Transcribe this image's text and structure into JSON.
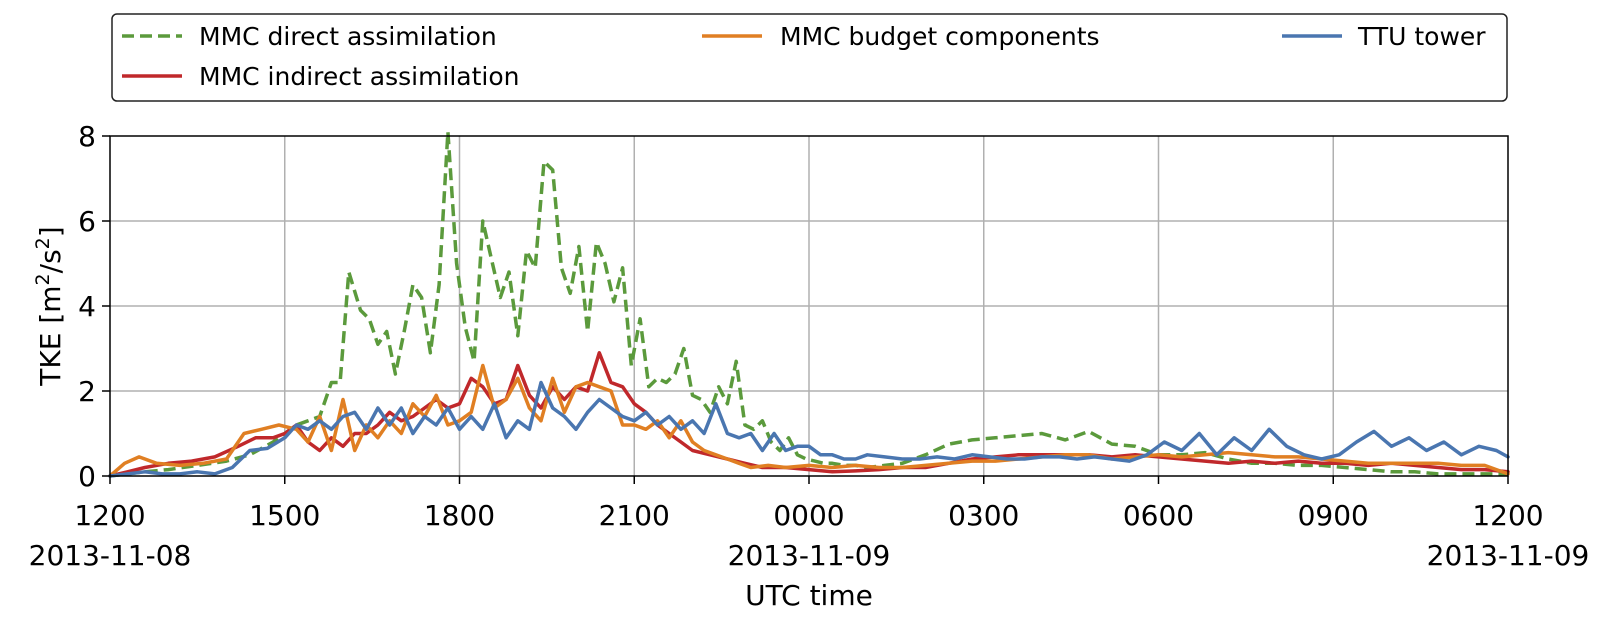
{
  "chart_data": {
    "type": "line",
    "xlabel": "UTC time",
    "ylabel_main": "TKE [m",
    "ylabel_sup1": "2",
    "ylabel_mid": "/s",
    "ylabel_sup2": "2",
    "ylabel_end": "]",
    "ylim": [
      0,
      8
    ],
    "y_ticks": [
      0,
      2,
      4,
      6,
      8
    ],
    "y_tick_labels": [
      "0",
      "2",
      "4",
      "6",
      "8"
    ],
    "x_unit": "hours since 2013-11-08 1200 UTC",
    "xlim": [
      0,
      24
    ],
    "x_ticks": [
      0,
      3,
      6,
      9,
      12,
      15,
      18,
      21,
      24
    ],
    "x_tick_labels": [
      "1200",
      "1500",
      "1800",
      "2100",
      "0000",
      "0300",
      "0600",
      "0900",
      "1200"
    ],
    "date_labels": [
      {
        "x": 0,
        "text": "2013-11-08"
      },
      {
        "x": 12,
        "text": "2013-11-09"
      },
      {
        "x": 24,
        "text": "2013-11-09"
      }
    ],
    "grid": true,
    "legend_placement": "above plot",
    "series": [
      {
        "name": "MMC direct assimilation",
        "color": "#5b9a3c",
        "dashed": true,
        "x": [
          0,
          0.3,
          0.6,
          1,
          1.5,
          2,
          2.4,
          2.8,
          3.2,
          3.4,
          3.6,
          3.8,
          3.95,
          4.1,
          4.3,
          4.45,
          4.6,
          4.75,
          4.9,
          5.05,
          5.2,
          5.35,
          5.5,
          5.65,
          5.8,
          5.95,
          6.1,
          6.25,
          6.4,
          6.55,
          6.7,
          6.85,
          7,
          7.15,
          7.3,
          7.45,
          7.6,
          7.75,
          7.9,
          8.05,
          8.2,
          8.35,
          8.5,
          8.65,
          8.8,
          8.95,
          9.1,
          9.25,
          9.4,
          9.55,
          9.7,
          9.85,
          10,
          10.15,
          10.3,
          10.45,
          10.6,
          10.75,
          10.9,
          11.05,
          11.2,
          11.35,
          11.5,
          11.65,
          11.8,
          11.95,
          12.1,
          12.25,
          12.4,
          12.6,
          12.8,
          13,
          13.3,
          13.6,
          14,
          14.4,
          14.8,
          15.2,
          15.6,
          16,
          16.4,
          16.8,
          17.2,
          17.6,
          18,
          18.4,
          18.8,
          19.2,
          19.6,
          20,
          20.4,
          20.8,
          21.2,
          21.6,
          22,
          22.4,
          22.8,
          23.2,
          23.6,
          24
        ],
        "y": [
          0,
          0.05,
          0.1,
          0.15,
          0.25,
          0.35,
          0.5,
          0.8,
          1.2,
          1.3,
          1.4,
          2.2,
          2.2,
          4.8,
          3.9,
          3.7,
          3.1,
          3.4,
          2.4,
          3.4,
          4.5,
          4.2,
          2.9,
          4.5,
          8.1,
          5,
          3.5,
          2.7,
          6,
          5.1,
          4.2,
          4.8,
          3.3,
          5.3,
          4.9,
          7.4,
          7.2,
          4.9,
          4.3,
          5.4,
          3.4,
          5.5,
          5,
          4.1,
          4.9,
          2.6,
          3.7,
          2.1,
          2.3,
          2.2,
          2.4,
          3,
          1.9,
          1.8,
          1.5,
          2.1,
          1.7,
          2.7,
          1.2,
          1.1,
          1.3,
          0.8,
          0.6,
          0.9,
          0.5,
          0.4,
          0.35,
          0.3,
          0.3,
          0.25,
          0.25,
          0.2,
          0.25,
          0.3,
          0.5,
          0.75,
          0.85,
          0.9,
          0.95,
          1,
          0.85,
          1.05,
          0.75,
          0.7,
          0.5,
          0.5,
          0.55,
          0.4,
          0.3,
          0.3,
          0.25,
          0.25,
          0.2,
          0.15,
          0.1,
          0.1,
          0.05,
          0.05,
          0.05,
          0.05
        ]
      },
      {
        "name": "MMC indirect assimilation",
        "color": "#c0282b",
        "dashed": false,
        "x": [
          0,
          0.3,
          0.6,
          1,
          1.4,
          1.8,
          2.2,
          2.5,
          2.8,
          3,
          3.2,
          3.4,
          3.6,
          3.8,
          4,
          4.2,
          4.4,
          4.6,
          4.8,
          5,
          5.2,
          5.4,
          5.6,
          5.8,
          6,
          6.2,
          6.4,
          6.6,
          6.8,
          7,
          7.2,
          7.4,
          7.6,
          7.8,
          8,
          8.2,
          8.4,
          8.6,
          8.8,
          9,
          9.2,
          9.4,
          9.6,
          9.8,
          10,
          10.3,
          10.6,
          10.9,
          11.2,
          11.6,
          12,
          12.4,
          12.8,
          13.2,
          13.6,
          14,
          14.4,
          14.8,
          15.2,
          15.6,
          16,
          16.4,
          16.8,
          17.2,
          17.6,
          18,
          18.4,
          18.8,
          19.2,
          19.6,
          20,
          20.4,
          20.8,
          21.2,
          21.6,
          22,
          22.4,
          22.8,
          23.2,
          23.6,
          24
        ],
        "y": [
          0,
          0.1,
          0.2,
          0.3,
          0.35,
          0.45,
          0.7,
          0.9,
          0.9,
          1,
          1.2,
          0.8,
          0.6,
          0.9,
          0.7,
          1,
          1,
          1.2,
          1.5,
          1.3,
          1.4,
          1.6,
          1.8,
          1.6,
          1.7,
          2.3,
          2.1,
          1.7,
          1.8,
          2.6,
          1.9,
          1.6,
          2.1,
          1.8,
          2.1,
          2,
          2.9,
          2.2,
          2.1,
          1.7,
          1.5,
          1.2,
          1,
          0.8,
          0.6,
          0.5,
          0.4,
          0.3,
          0.2,
          0.2,
          0.15,
          0.1,
          0.12,
          0.15,
          0.2,
          0.2,
          0.3,
          0.4,
          0.45,
          0.5,
          0.5,
          0.5,
          0.5,
          0.45,
          0.5,
          0.45,
          0.4,
          0.35,
          0.3,
          0.35,
          0.3,
          0.35,
          0.3,
          0.3,
          0.25,
          0.3,
          0.25,
          0.2,
          0.15,
          0.15,
          0.1
        ]
      },
      {
        "name": "MMC budget components",
        "color": "#e07f23",
        "dashed": false,
        "x": [
          0,
          0.25,
          0.5,
          0.8,
          1.2,
          1.6,
          2,
          2.3,
          2.6,
          2.9,
          3.2,
          3.4,
          3.6,
          3.8,
          4,
          4.2,
          4.4,
          4.6,
          4.8,
          5,
          5.2,
          5.4,
          5.6,
          5.8,
          6,
          6.2,
          6.4,
          6.6,
          6.8,
          7,
          7.2,
          7.4,
          7.6,
          7.8,
          8,
          8.2,
          8.4,
          8.6,
          8.8,
          9,
          9.2,
          9.4,
          9.6,
          9.8,
          10,
          10.2,
          10.4,
          10.6,
          10.8,
          11,
          11.3,
          11.6,
          12,
          12.4,
          12.8,
          13.2,
          13.6,
          14,
          14.4,
          14.8,
          15.2,
          15.6,
          16,
          16.4,
          16.8,
          17.2,
          17.6,
          18,
          18.4,
          18.8,
          19.2,
          19.6,
          20,
          20.4,
          20.8,
          21.2,
          21.6,
          22,
          22.4,
          22.8,
          23.2,
          23.6,
          24
        ],
        "y": [
          0,
          0.3,
          0.45,
          0.3,
          0.25,
          0.3,
          0.4,
          1,
          1.1,
          1.2,
          1.1,
          0.8,
          1.4,
          0.6,
          1.8,
          0.6,
          1.2,
          0.9,
          1.3,
          1,
          1.7,
          1.4,
          1.9,
          1.2,
          1.3,
          1.5,
          2.6,
          1.6,
          1.8,
          2.3,
          1.6,
          1.3,
          2.3,
          1.5,
          2.1,
          2.2,
          2.1,
          2,
          1.2,
          1.2,
          1.1,
          1.3,
          0.9,
          1.3,
          0.8,
          0.6,
          0.5,
          0.4,
          0.3,
          0.2,
          0.25,
          0.2,
          0.25,
          0.2,
          0.25,
          0.2,
          0.2,
          0.25,
          0.3,
          0.35,
          0.35,
          0.4,
          0.45,
          0.5,
          0.5,
          0.4,
          0.45,
          0.5,
          0.45,
          0.5,
          0.55,
          0.5,
          0.45,
          0.45,
          0.4,
          0.35,
          0.3,
          0.3,
          0.3,
          0.3,
          0.25,
          0.25,
          0.05
        ]
      },
      {
        "name": "TTU tower",
        "color": "#4a76b0",
        "dashed": false,
        "x": [
          0,
          0.3,
          0.6,
          0.9,
          1.2,
          1.5,
          1.8,
          2.1,
          2.4,
          2.7,
          3,
          3.2,
          3.4,
          3.6,
          3.8,
          4,
          4.2,
          4.4,
          4.6,
          4.8,
          5,
          5.2,
          5.4,
          5.6,
          5.8,
          6,
          6.2,
          6.4,
          6.6,
          6.8,
          7,
          7.2,
          7.4,
          7.6,
          7.8,
          8,
          8.2,
          8.4,
          8.6,
          8.8,
          9,
          9.2,
          9.4,
          9.6,
          9.8,
          10,
          10.2,
          10.4,
          10.6,
          10.8,
          11,
          11.2,
          11.4,
          11.6,
          11.8,
          12,
          12.2,
          12.4,
          12.6,
          12.8,
          13,
          13.3,
          13.6,
          13.9,
          14.2,
          14.5,
          14.8,
          15.1,
          15.4,
          15.7,
          16,
          16.3,
          16.6,
          16.9,
          17.2,
          17.5,
          17.8,
          18.1,
          18.4,
          18.7,
          19,
          19.3,
          19.6,
          19.9,
          20.2,
          20.5,
          20.8,
          21.1,
          21.4,
          21.7,
          22,
          22.3,
          22.6,
          22.9,
          23.2,
          23.5,
          23.8,
          24
        ],
        "y": [
          0,
          0.05,
          0.1,
          0.05,
          0.05,
          0.1,
          0.05,
          0.2,
          0.6,
          0.65,
          0.9,
          1.2,
          1.1,
          1.3,
          1.1,
          1.4,
          1.5,
          1.1,
          1.6,
          1.2,
          1.6,
          1,
          1.4,
          1.2,
          1.6,
          1.1,
          1.4,
          1.1,
          1.7,
          0.9,
          1.3,
          1.1,
          2.2,
          1.6,
          1.4,
          1.1,
          1.5,
          1.8,
          1.6,
          1.4,
          1.3,
          1.5,
          1.2,
          1.4,
          1.1,
          1.3,
          1,
          1.7,
          1,
          0.9,
          1,
          0.6,
          1,
          0.6,
          0.7,
          0.7,
          0.5,
          0.5,
          0.4,
          0.4,
          0.5,
          0.45,
          0.4,
          0.4,
          0.45,
          0.4,
          0.5,
          0.45,
          0.4,
          0.4,
          0.45,
          0.45,
          0.4,
          0.45,
          0.4,
          0.35,
          0.5,
          0.8,
          0.6,
          1,
          0.5,
          0.9,
          0.6,
          1.1,
          0.7,
          0.5,
          0.4,
          0.5,
          0.8,
          1.05,
          0.7,
          0.9,
          0.6,
          0.8,
          0.5,
          0.7,
          0.6,
          0.45
        ]
      }
    ],
    "legend": [
      {
        "label": "MMC direct assimilation",
        "color": "#5b9a3c",
        "dashed": true
      },
      {
        "label": "MMC indirect assimilation",
        "color": "#c0282b",
        "dashed": false
      },
      {
        "label": "MMC budget components",
        "color": "#e07f23",
        "dashed": false
      },
      {
        "label": "TTU tower",
        "color": "#4a76b0",
        "dashed": false
      }
    ]
  }
}
